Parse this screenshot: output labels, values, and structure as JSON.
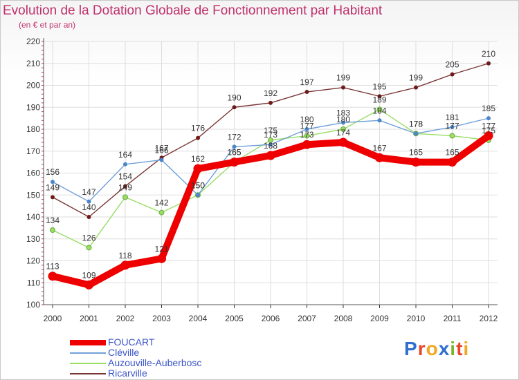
{
  "title": "Evolution de la Dotation Globale de Fonctionnement par Habitant",
  "subtitle": "(en € et par an)",
  "logo": "Proxiti",
  "colors": {
    "title": "#c0306a",
    "legend_text": "#3a55c8",
    "FOUCART": "#ee0000",
    "Cléville": "#6f9fd8",
    "Auzouville-Auberbosc": "#99dd66",
    "Ricarville": "#7a3535"
  },
  "chart_data": {
    "type": "line",
    "title": "Evolution de la Dotation Globale de Fonctionnement par Habitant",
    "subtitle": "(en € et par an)",
    "xlabel": "",
    "ylabel": "",
    "categories": [
      "2000",
      "2001",
      "2002",
      "2003",
      "2004",
      "2005",
      "2006",
      "2007",
      "2008",
      "2009",
      "2010",
      "2011",
      "2012"
    ],
    "ylim": [
      100,
      220
    ],
    "yticks": [
      100,
      110,
      120,
      130,
      140,
      150,
      160,
      170,
      180,
      190,
      200,
      210,
      220
    ],
    "grid": true,
    "series": [
      {
        "name": "Ricarville",
        "values": [
          149,
          140,
          154,
          167,
          176,
          190,
          192,
          197,
          199,
          195,
          199,
          205,
          210
        ]
      },
      {
        "name": "Auzouville-Auberbosc",
        "values": [
          134,
          126,
          149,
          142,
          150,
          165,
          175,
          177,
          180,
          189,
          178,
          177,
          175
        ]
      },
      {
        "name": "Cléville",
        "values": [
          156,
          147,
          164,
          166,
          150,
          172,
          173,
          180,
          183,
          184,
          178,
          181,
          185
        ]
      },
      {
        "name": "FOUCART",
        "values": [
          113,
          109,
          118,
          121,
          162,
          165,
          168,
          173,
          174,
          167,
          165,
          165,
          177
        ]
      }
    ]
  },
  "legend": [
    {
      "key": "FOUCART",
      "label": "FOUCART"
    },
    {
      "key": "Cléville",
      "label": "Cléville"
    },
    {
      "key": "Auzouville-Auberbosc",
      "label": "Auzouville-Auberbosc"
    },
    {
      "key": "Ricarville",
      "label": "Ricarville"
    }
  ]
}
